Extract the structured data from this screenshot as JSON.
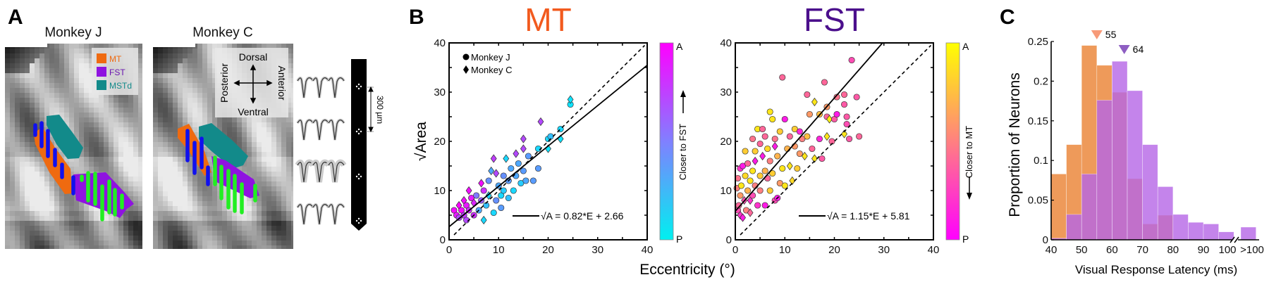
{
  "panels": {
    "a": "A",
    "b": "B",
    "c": "C"
  },
  "panel_a": {
    "monkey_j": "Monkey J",
    "monkey_c": "Monkey C",
    "legend": [
      {
        "label": "MT",
        "color": "#ef6a10"
      },
      {
        "label": "FST",
        "color": "#8f13e0"
      },
      {
        "label": "MSTd",
        "color": "#128a8a"
      }
    ],
    "orientation": {
      "dorsal": "Dorsal",
      "ventral": "Ventral",
      "posterior": "Posterior",
      "anterior": "Anterior"
    },
    "scale_bar": "300 µm",
    "recording_colors": {
      "mt_sites": "#1010ee",
      "fst_sites": "#22ee22"
    }
  },
  "chart_data": [
    {
      "type": "scatter",
      "title": "MT",
      "title_color": "#f25a1e",
      "xlabel": "Eccentricity (°)",
      "ylabel": "√Area",
      "xlim": [
        0,
        40
      ],
      "ylim": [
        0,
        40
      ],
      "xticks": [
        "0",
        "10",
        "20",
        "30",
        "40"
      ],
      "yticks": [
        "0",
        "10",
        "20",
        "30",
        "40"
      ],
      "legend": [
        {
          "marker": "circle",
          "label": "Monkey J"
        },
        {
          "marker": "diamond",
          "label": "Monkey C"
        }
      ],
      "legend_position": "top-left",
      "fit": {
        "slope": 0.82,
        "intercept": 2.66,
        "label": "√A = 0.82*E + 2.66"
      },
      "unity_line": true,
      "colorbar": {
        "top": "A",
        "bottom": "P",
        "label": "Closer to FST",
        "colors": [
          "#00f0f0",
          "#ff00ff"
        ]
      },
      "points": [
        [
          1,
          6,
          "J",
          0.95
        ],
        [
          1.5,
          5,
          "J",
          0.9
        ],
        [
          2,
          7,
          "C",
          1
        ],
        [
          2,
          4.5,
          "J",
          0.7
        ],
        [
          2.5,
          6,
          "J",
          0.95
        ],
        [
          3,
          8,
          "C",
          0.95
        ],
        [
          3,
          5,
          "J",
          0.75
        ],
        [
          3.5,
          4,
          "J",
          0.7
        ],
        [
          3.5,
          7,
          "J",
          0.9
        ],
        [
          4,
          10,
          "C",
          0.95
        ],
        [
          4,
          6,
          "J",
          0.8
        ],
        [
          4.5,
          8.5,
          "J",
          0.9
        ],
        [
          5,
          5,
          "J",
          0.8
        ],
        [
          5,
          7.5,
          "C",
          0.85
        ],
        [
          5.5,
          9,
          "J",
          0.5
        ],
        [
          6,
          6,
          "J",
          0.3
        ],
        [
          6.5,
          11.5,
          "C",
          0.95
        ],
        [
          6.5,
          8,
          "J",
          0.6
        ],
        [
          7,
          4,
          "C",
          0.1
        ],
        [
          7,
          10,
          "J",
          0.8
        ],
        [
          7.5,
          7,
          "J",
          0.2
        ],
        [
          8,
          9,
          "C",
          0.1
        ],
        [
          8,
          12,
          "J",
          0.4
        ],
        [
          8.5,
          14,
          "C",
          0.3
        ],
        [
          9,
          5.5,
          "J",
          0.1
        ],
        [
          9,
          16.5,
          "C",
          0.75
        ],
        [
          9.5,
          13.5,
          "C",
          0.7
        ],
        [
          9.5,
          8,
          "J",
          0.4
        ],
        [
          10,
          11,
          "J",
          0.3
        ],
        [
          10.5,
          9,
          "J",
          0.1
        ],
        [
          10.5,
          6.5,
          "J",
          0.35
        ],
        [
          11,
          13,
          "J",
          0.4
        ],
        [
          11,
          10,
          "J",
          0.15
        ],
        [
          11.5,
          16.5,
          "C",
          0.1
        ],
        [
          12,
          8.5,
          "J",
          0.2
        ],
        [
          12,
          12,
          "J",
          0.35
        ],
        [
          12.5,
          14.5,
          "J",
          0.3
        ],
        [
          13,
          10,
          "J",
          0.1
        ],
        [
          13.5,
          17.5,
          "C",
          0.7
        ],
        [
          13.5,
          13,
          "J",
          0.3
        ],
        [
          14,
          15.5,
          "J",
          0.3
        ],
        [
          14.5,
          11.5,
          "J",
          0.15
        ],
        [
          15,
          18.5,
          "C",
          0.7
        ],
        [
          15,
          20.5,
          "C",
          0.7
        ],
        [
          15,
          14,
          "J",
          0.35
        ],
        [
          15.5,
          12,
          "J",
          0.3
        ],
        [
          16,
          17,
          "J",
          0.35
        ],
        [
          17,
          12,
          "J",
          0.35
        ],
        [
          18,
          14.5,
          "J",
          0.35
        ],
        [
          18,
          18.5,
          "J",
          0.1
        ],
        [
          18.5,
          24,
          "C",
          0.7
        ],
        [
          20,
          20.5,
          "J",
          0.1
        ],
        [
          20,
          18.5,
          "C",
          0.05
        ],
        [
          20.5,
          21,
          "J",
          0.2
        ],
        [
          22.5,
          22.5,
          "J",
          0.1
        ],
        [
          22.5,
          20.5,
          "C",
          0.05
        ],
        [
          24.5,
          27.5,
          "J",
          0.05
        ],
        [
          24.5,
          28.5,
          "C",
          0.05
        ]
      ]
    },
    {
      "type": "scatter",
      "title": "FST",
      "title_color": "#4b0f8c",
      "xlabel": "Eccentricity (°)",
      "ylabel": "√Area",
      "xlim": [
        0,
        40
      ],
      "ylim": [
        0,
        40
      ],
      "xticks": [
        "0",
        "10",
        "20",
        "30",
        "40"
      ],
      "yticks": [
        "0",
        "10",
        "20",
        "30",
        "40"
      ],
      "fit": {
        "slope": 1.15,
        "intercept": 5.81,
        "label": "√A = 1.15*E + 5.81"
      },
      "unity_line": true,
      "colorbar": {
        "top": "A",
        "bottom": "P",
        "label": "Closer to MT",
        "colors": [
          "#ff00ff",
          "#ffff00"
        ]
      },
      "points": [
        [
          0.3,
          10.5,
          "J",
          0.5
        ],
        [
          0.5,
          12.5,
          "J",
          0.45
        ],
        [
          0.5,
          6,
          "J",
          0.3
        ],
        [
          0.7,
          7,
          "J",
          0.4
        ],
        [
          1,
          5,
          "C",
          0.2
        ],
        [
          1,
          9,
          "J",
          0.6
        ],
        [
          1,
          14.5,
          "J",
          0.2
        ],
        [
          1.2,
          11,
          "J",
          0.9
        ],
        [
          1.5,
          4.5,
          "C",
          0.1
        ],
        [
          1.5,
          15,
          "J",
          0.1
        ],
        [
          1.8,
          8,
          "C",
          0.3
        ],
        [
          2,
          18,
          "J",
          0.8
        ],
        [
          2,
          13,
          "J",
          0.85
        ],
        [
          2.2,
          6,
          "J",
          0.5
        ],
        [
          2.5,
          10,
          "J",
          0.7
        ],
        [
          2.5,
          15.5,
          "J",
          0.4
        ],
        [
          3,
          12,
          "J",
          0.9
        ],
        [
          3,
          8,
          "C",
          0.2
        ],
        [
          3,
          5.5,
          "C",
          0.4
        ],
        [
          3.5,
          20.5,
          "J",
          0.45
        ],
        [
          3.5,
          14,
          "J",
          0.9
        ],
        [
          3.5,
          9,
          "J",
          0.3
        ],
        [
          4,
          18,
          "J",
          0.8
        ],
        [
          4,
          11,
          "J",
          0.5
        ],
        [
          4,
          16,
          "C",
          0.1
        ],
        [
          4.5,
          22.5,
          "J",
          0.9
        ],
        [
          4.5,
          7,
          "J",
          0.2
        ],
        [
          5,
          13,
          "J",
          0.8
        ],
        [
          5,
          19.5,
          "J",
          0.4
        ],
        [
          5,
          10,
          "J",
          0.5
        ],
        [
          5.5,
          17,
          "C",
          0.1
        ],
        [
          5.5,
          22.5,
          "J",
          0.4
        ],
        [
          6,
          21,
          "J",
          0.4
        ],
        [
          6,
          14,
          "J",
          0.7
        ],
        [
          6,
          7,
          "J",
          0.1
        ],
        [
          6.5,
          12.5,
          "J",
          0.4
        ],
        [
          6.5,
          18.5,
          "J",
          0.85
        ],
        [
          7,
          26,
          "J",
          0.9
        ],
        [
          7,
          16,
          "J",
          0.5
        ],
        [
          7,
          10,
          "J",
          0.8
        ],
        [
          7.5,
          24.5,
          "J",
          0.9
        ],
        [
          7.5,
          13.5,
          "J",
          0.8
        ],
        [
          8,
          20.5,
          "J",
          0.45
        ],
        [
          8,
          8,
          "J",
          0.3
        ],
        [
          8,
          19,
          "C",
          0.1
        ],
        [
          8.5,
          17,
          "J",
          0.7
        ],
        [
          8.5,
          8.5,
          "J",
          0.1
        ],
        [
          9,
          22,
          "J",
          0.8
        ],
        [
          9,
          11.5,
          "J",
          0.6
        ],
        [
          9.5,
          33,
          "J",
          0.4
        ],
        [
          9.5,
          14.5,
          "J",
          0.9
        ],
        [
          10,
          24.5,
          "J",
          0.1
        ],
        [
          10,
          11,
          "J",
          0.9
        ],
        [
          10.5,
          18.5,
          "J",
          0.7
        ],
        [
          11,
          15,
          "C",
          0.9
        ],
        [
          11,
          21,
          "J",
          0.4
        ],
        [
          11.5,
          12,
          "C",
          0.85
        ],
        [
          12,
          19,
          "J",
          0.6
        ],
        [
          12,
          22.5,
          "J",
          0.8
        ],
        [
          12.5,
          14.5,
          "J",
          0.8
        ],
        [
          13,
          17.5,
          "J",
          0.6
        ],
        [
          13,
          22,
          "J",
          0.15
        ],
        [
          13.5,
          20.5,
          "J",
          0.5
        ],
        [
          14,
          17,
          "C",
          0.9
        ],
        [
          14.5,
          21,
          "J",
          0.75
        ],
        [
          14.5,
          29.5,
          "J",
          0.4
        ],
        [
          15,
          25.5,
          "J",
          0.6
        ],
        [
          15.5,
          18.5,
          "J",
          0.4
        ],
        [
          16,
          28,
          "C",
          0.9
        ],
        [
          16,
          16.5,
          "C",
          0.9
        ],
        [
          17,
          25.5,
          "J",
          0.75
        ],
        [
          17,
          20.5,
          "J",
          0.15
        ],
        [
          17.5,
          16.5,
          "J",
          0.35
        ],
        [
          18,
          32,
          "J",
          0.4
        ],
        [
          18.5,
          27,
          "J",
          0.6
        ],
        [
          18.5,
          25,
          "J",
          0.4
        ],
        [
          18.5,
          21,
          "C",
          0.9
        ],
        [
          19,
          24.5,
          "C",
          0.95
        ],
        [
          19.5,
          20,
          "J",
          0.4
        ],
        [
          20,
          24.5,
          "J",
          0.35
        ],
        [
          20.5,
          29,
          "J",
          0.45
        ],
        [
          20.5,
          25.5,
          "J",
          0.1
        ],
        [
          22,
          29.5,
          "J",
          0.4
        ],
        [
          22,
          27.5,
          "J",
          0.35
        ],
        [
          22,
          21.5,
          "C",
          0.9
        ],
        [
          22.5,
          25,
          "J",
          0.35
        ],
        [
          22.5,
          23.5,
          "J",
          0.3
        ],
        [
          23,
          20.5,
          "J",
          0.35
        ],
        [
          23.5,
          36.5,
          "J",
          0.3
        ],
        [
          24.5,
          29,
          "J",
          0.35
        ],
        [
          25,
          21,
          "J",
          0.4
        ]
      ]
    },
    {
      "type": "bar",
      "title": "",
      "xlabel": "Visual Response Latency (ms)",
      "ylabel": "Proportion of Neurons",
      "ylim": [
        0,
        0.25
      ],
      "yticks": [
        "0",
        "0.05",
        "0.1",
        "0.15",
        "0.2",
        "0.25"
      ],
      "xticks": [
        "40",
        "50",
        "60",
        "70",
        "80",
        "90",
        "100",
        ">100"
      ],
      "bins": [
        "40-45",
        "45-50",
        "50-55",
        "55-60",
        "60-65",
        "65-70",
        "70-75",
        "75-80",
        "80-85",
        "85-90",
        "90-95",
        "95-100",
        ">100"
      ],
      "series": [
        {
          "name": "MT",
          "color": "#ee9a5a",
          "median": 55,
          "median_label": "55",
          "marker_color": "#f79a78",
          "values": [
            0.083,
            0.12,
            0.245,
            0.22,
            0.186,
            0.077,
            0.02,
            0.031,
            0.0,
            0.001,
            0.0,
            0.0,
            0.0
          ]
        },
        {
          "name": "FST",
          "color": "#b565e6",
          "median": 64,
          "median_label": "64",
          "marker_color": "#8e5ec2",
          "values": [
            0.002,
            0.032,
            0.083,
            0.176,
            0.225,
            0.188,
            0.12,
            0.067,
            0.032,
            0.022,
            0.02,
            0.01,
            0.016
          ]
        }
      ]
    }
  ]
}
